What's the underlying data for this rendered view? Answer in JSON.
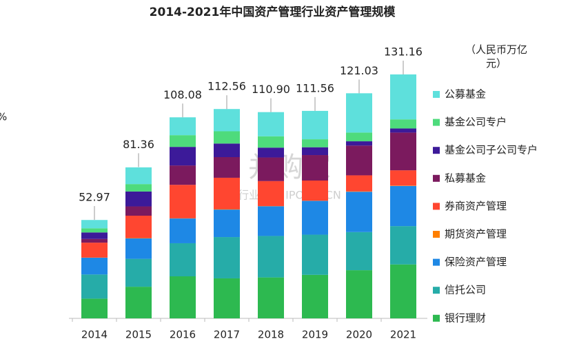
{
  "chart_data": {
    "type": "stacked-bar",
    "title": "2014-2021年中国资产管理行业资产管理规模",
    "unit": "（人民币万亿元）",
    "fragment": "%",
    "watermark": [
      "并购家",
      "行业报告 IPOIPC.CN"
    ],
    "categories": [
      "2014",
      "2015",
      "2016",
      "2017",
      "2018",
      "2019",
      "2020",
      "2021"
    ],
    "totals": [
      52.97,
      81.36,
      108.08,
      112.56,
      110.9,
      111.56,
      121.03,
      131.16
    ],
    "total_labels": [
      "52.97",
      "81.36",
      "108.08",
      "112.56",
      "110.90",
      "111.56",
      "121.03",
      "131.16"
    ],
    "series": [
      {
        "name": "银行理财",
        "color": "#2db950",
        "values": [
          10.6,
          17,
          22.6,
          21.5,
          22,
          23.4,
          25.9,
          29
        ]
      },
      {
        "name": "信托公司",
        "color": "#26aca8",
        "values": [
          13,
          15,
          17.8,
          22.2,
          22.3,
          21.6,
          20.5,
          20.6
        ]
      },
      {
        "name": "保险资产管理",
        "color": "#1e88e5",
        "values": [
          9,
          11,
          13.3,
          14.8,
          16,
          18.2,
          21.7,
          21.6
        ]
      },
      {
        "name": "期货资产管理",
        "color": "#ff7f00",
        "values": [
          0.1,
          0.2,
          0.1,
          0.2,
          0.1,
          0.1,
          0.2,
          0.2
        ]
      },
      {
        "name": "券商资产管理",
        "color": "#ff4630",
        "values": [
          8,
          12,
          18,
          16.9,
          13.4,
          10.8,
          8.6,
          8.2
        ]
      },
      {
        "name": "私募基金",
        "color": "#7b1a5e",
        "values": [
          2,
          5,
          10.4,
          11.1,
          12.7,
          13.7,
          16,
          20.3
        ]
      },
      {
        "name": "基金公司子公司专户",
        "color": "#3c1a99",
        "values": [
          3.5,
          8,
          10,
          7.3,
          5.3,
          4.2,
          2.3,
          2.2
        ]
      },
      {
        "name": "基金公司专户",
        "color": "#4edb7c",
        "values": [
          2.2,
          4,
          6.3,
          6.6,
          6.1,
          4.3,
          4.7,
          4.9
        ]
      },
      {
        "name": "公募基金",
        "color": "#5ee0dc",
        "values": [
          4.5,
          9,
          9.6,
          11.96,
          13,
          15.26,
          21.13,
          24.16
        ]
      }
    ],
    "ylim": [
      0,
      131.16
    ]
  }
}
